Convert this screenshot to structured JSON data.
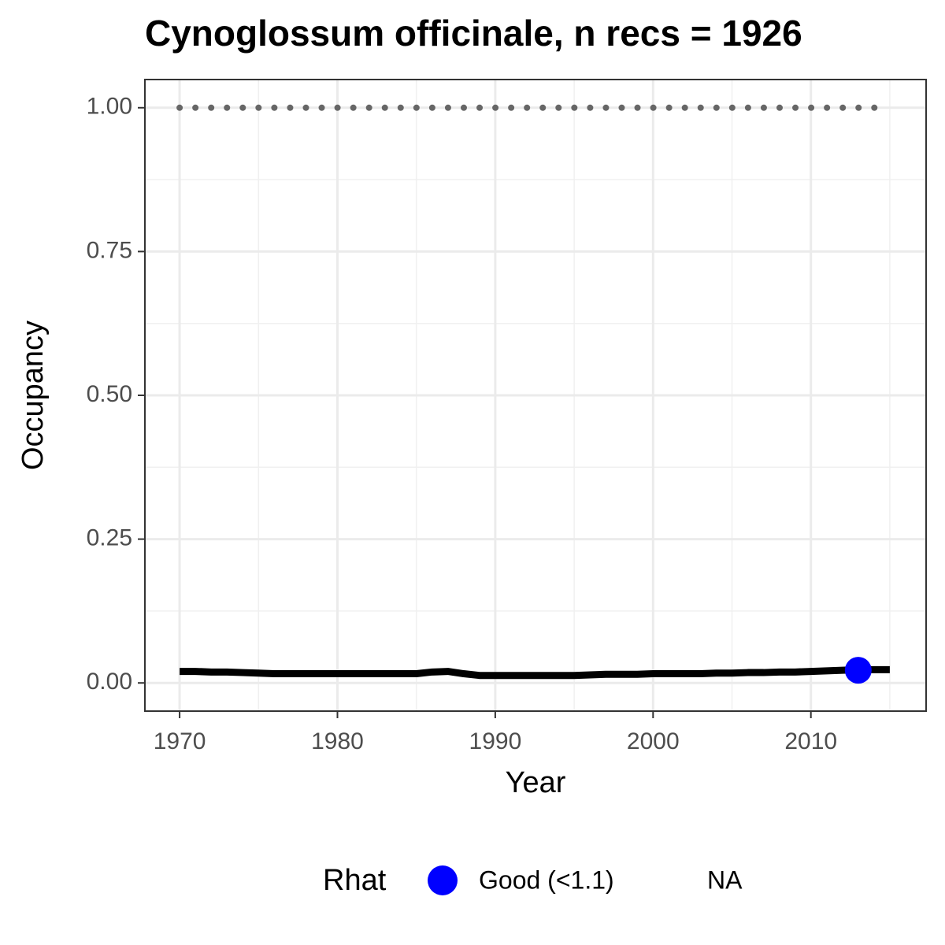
{
  "chart_data": {
    "type": "line",
    "title": "Cynoglossum officinale, n recs = 1926",
    "xlabel": "Year",
    "ylabel": "Occupancy",
    "x": [
      1970,
      1971,
      1972,
      1973,
      1974,
      1975,
      1976,
      1977,
      1978,
      1979,
      1980,
      1981,
      1982,
      1983,
      1984,
      1985,
      1986,
      1987,
      1988,
      1989,
      1990,
      1991,
      1992,
      1993,
      1994,
      1995,
      1996,
      1997,
      1998,
      1999,
      2000,
      2001,
      2002,
      2003,
      2004,
      2005,
      2006,
      2007,
      2008,
      2009,
      2010,
      2011,
      2012,
      2013,
      2014,
      2015
    ],
    "lines": [
      {
        "color": "#000000",
        "style": "solid",
        "values": [
          0.02,
          0.02,
          0.019,
          0.019,
          0.018,
          0.017,
          0.016,
          0.016,
          0.016,
          0.016,
          0.016,
          0.016,
          0.016,
          0.016,
          0.016,
          0.016,
          0.019,
          0.02,
          0.016,
          0.013,
          0.013,
          0.013,
          0.013,
          0.013,
          0.013,
          0.013,
          0.014,
          0.015,
          0.015,
          0.015,
          0.016,
          0.016,
          0.016,
          0.016,
          0.017,
          0.017,
          0.018,
          0.018,
          0.019,
          0.019,
          0.02,
          0.021,
          0.022,
          0.023,
          0.023,
          0.023
        ]
      },
      {
        "color": "#666666",
        "style": "dotted",
        "values": [
          1,
          1,
          1,
          1,
          1,
          1,
          1,
          1,
          1,
          1,
          1,
          1,
          1,
          1,
          1,
          1,
          1,
          1,
          1,
          1,
          1,
          1,
          1,
          1,
          1,
          1,
          1,
          1,
          1,
          1,
          1,
          1,
          1,
          1,
          1,
          1,
          1,
          1,
          1,
          1,
          1,
          1,
          1,
          1,
          1,
          1
        ]
      }
    ],
    "points": {
      "x": [
        2013
      ],
      "values": [
        0.022
      ],
      "color": "#0000ff"
    },
    "legend": {
      "title": "Rhat",
      "position": "bottom",
      "entries": [
        {
          "name": "Good (<1.1)",
          "color": "#0000ff"
        },
        {
          "name": "NA"
        }
      ]
    },
    "xlim": [
      1967.8,
      2017.3
    ],
    "ylim": [
      -0.049,
      1.049
    ],
    "xticks": [
      1970,
      1980,
      1990,
      2000,
      2010
    ],
    "yticks": [
      {
        "value": 0,
        "label": "0.00"
      },
      {
        "value": 0.25,
        "label": "0.25"
      },
      {
        "value": 0.5,
        "label": "0.50"
      },
      {
        "value": 0.75,
        "label": "0.75"
      },
      {
        "value": 1,
        "label": "1.00"
      }
    ],
    "grid": true
  }
}
